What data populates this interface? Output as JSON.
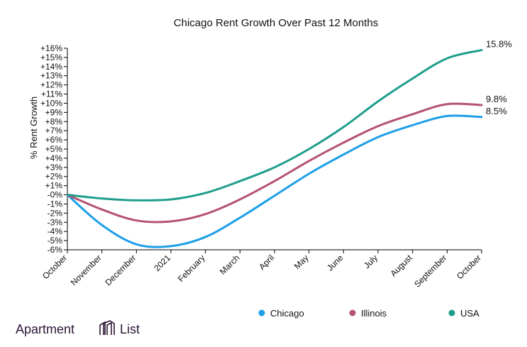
{
  "chart_data": {
    "type": "line",
    "title": "Chicago Rent Growth Over Past 12 Months",
    "xlabel": "",
    "ylabel": "% Rent Growth",
    "x": [
      "October",
      "November",
      "December",
      "2021",
      "February",
      "March",
      "April",
      "May",
      "June",
      "July",
      "August",
      "September",
      "October"
    ],
    "ylim": [
      -6,
      16
    ],
    "yticks": [
      "-6%",
      "-5%",
      "-4%",
      "-3%",
      "-2%",
      "-1%",
      "-0%",
      "+1%",
      "+2%",
      "+3%",
      "+4%",
      "+5%",
      "+6%",
      "+7%",
      "+8%",
      "+9%",
      "+10%",
      "+11%",
      "+12%",
      "+13%",
      "+14%",
      "+15%",
      "+16%"
    ],
    "series": [
      {
        "name": "Chicago",
        "color": "#1e9fe8",
        "values": [
          0,
          -3.3,
          -5.4,
          -5.6,
          -4.6,
          -2.5,
          -0.1,
          2.3,
          4.4,
          6.3,
          7.6,
          8.6,
          8.5
        ],
        "end_label": "8.5%"
      },
      {
        "name": "Illinois",
        "color": "#b5526f",
        "values": [
          0,
          -1.6,
          -2.8,
          -2.9,
          -2.1,
          -0.5,
          1.5,
          3.7,
          5.7,
          7.5,
          8.8,
          9.9,
          9.8
        ],
        "end_label": "9.8%"
      },
      {
        "name": "USA",
        "color": "#1f9e8c",
        "values": [
          0,
          -0.4,
          -0.6,
          -0.5,
          0.2,
          1.5,
          3.0,
          5.0,
          7.4,
          10.2,
          12.7,
          14.9,
          15.8
        ],
        "end_label": "15.8%"
      }
    ],
    "legend": "bottom-right",
    "grid": false
  },
  "logo": {
    "text_left": "Apartment",
    "text_right": "List",
    "icon": "building-icon"
  }
}
